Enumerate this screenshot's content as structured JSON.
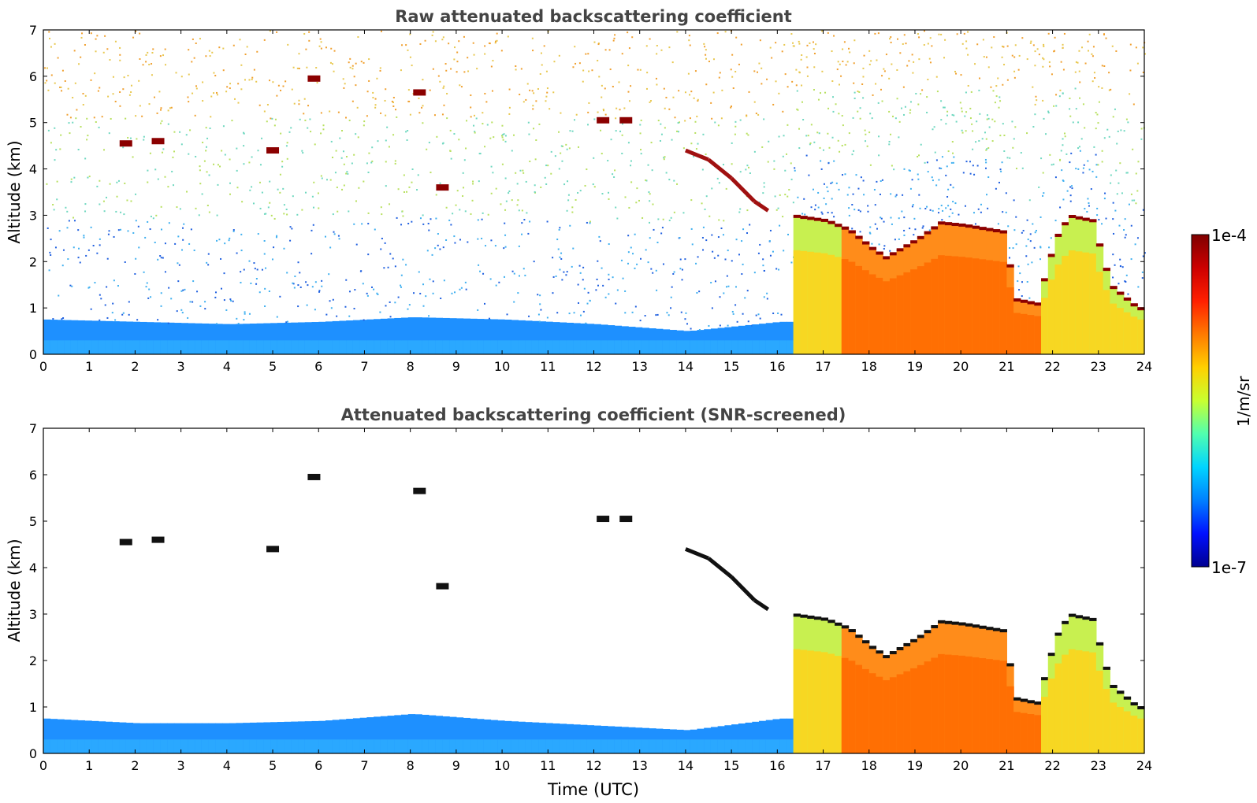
{
  "chart_data": [
    {
      "type": "heatmap",
      "title": "Raw attenuated backscattering coefficient",
      "xlabel": "",
      "ylabel": "Altitude (km)",
      "xlim": [
        0,
        24
      ],
      "ylim": [
        0,
        7
      ],
      "xticks": [
        "0",
        "1",
        "2",
        "3",
        "4",
        "5",
        "6",
        "7",
        "8",
        "9",
        "10",
        "11",
        "12",
        "13",
        "14",
        "15",
        "16",
        "17",
        "18",
        "19",
        "20",
        "21",
        "22",
        "23",
        "24"
      ],
      "yticks": [
        "0",
        "1",
        "2",
        "3",
        "4",
        "5",
        "6",
        "7"
      ],
      "colorscale": "jet, log10",
      "features": {
        "boundary_layer_top_km": [
          [
            0,
            0.75
          ],
          [
            2,
            0.7
          ],
          [
            4,
            0.65
          ],
          [
            6,
            0.7
          ],
          [
            8,
            0.8
          ],
          [
            10,
            0.75
          ],
          [
            12,
            0.65
          ],
          [
            14,
            0.5
          ],
          [
            16,
            0.7
          ]
        ],
        "descending_cloud_layer_km": [
          [
            14.0,
            4.4
          ],
          [
            14.5,
            4.2
          ],
          [
            15.0,
            3.8
          ],
          [
            15.5,
            3.3
          ],
          [
            15.8,
            3.1
          ]
        ],
        "cloud_top_km": [
          [
            16.3,
            3.0
          ],
          [
            17.0,
            2.9
          ],
          [
            17.5,
            2.7
          ],
          [
            18.0,
            2.3
          ],
          [
            18.3,
            2.1
          ],
          [
            19.0,
            2.5
          ],
          [
            19.5,
            2.85
          ],
          [
            20.0,
            2.8
          ],
          [
            20.9,
            2.65
          ],
          [
            21.1,
            1.2
          ],
          [
            21.6,
            1.1
          ],
          [
            22.0,
            2.5
          ],
          [
            22.3,
            3.0
          ],
          [
            22.8,
            2.9
          ],
          [
            23.2,
            1.5
          ],
          [
            23.8,
            1.0
          ]
        ],
        "isolated_clouds_km": [
          [
            1.8,
            4.55
          ],
          [
            2.5,
            4.6
          ],
          [
            5.0,
            4.4
          ],
          [
            5.9,
            5.95
          ],
          [
            8.2,
            5.65
          ],
          [
            8.7,
            3.6
          ],
          [
            12.2,
            5.05
          ],
          [
            12.7,
            5.05
          ]
        ]
      }
    },
    {
      "type": "heatmap",
      "title": "Attenuated backscattering coefficient (SNR-screened)",
      "xlabel": "Time (UTC)",
      "ylabel": "Altitude (km)",
      "xlim": [
        0,
        24
      ],
      "ylim": [
        0,
        7
      ],
      "xticks": [
        "0",
        "1",
        "2",
        "3",
        "4",
        "5",
        "6",
        "7",
        "8",
        "9",
        "10",
        "11",
        "12",
        "13",
        "14",
        "15",
        "16",
        "17",
        "18",
        "19",
        "20",
        "21",
        "22",
        "23",
        "24"
      ],
      "yticks": [
        "0",
        "1",
        "2",
        "3",
        "4",
        "5",
        "6",
        "7"
      ],
      "colorscale": "jet, log10",
      "features": {
        "boundary_layer_top_km": [
          [
            0,
            0.75
          ],
          [
            2,
            0.65
          ],
          [
            4,
            0.65
          ],
          [
            6,
            0.7
          ],
          [
            8,
            0.85
          ],
          [
            10,
            0.7
          ],
          [
            12,
            0.6
          ],
          [
            14,
            0.5
          ],
          [
            16,
            0.75
          ]
        ]
      }
    }
  ],
  "colorbar": {
    "max_label": "1e-4",
    "min_label": "1e-7",
    "unit_label": "1/m/sr",
    "stops": [
      "#7f0000",
      "#cc0000",
      "#ff2000",
      "#ff7a00",
      "#ffd000",
      "#c8ff30",
      "#50ffb0",
      "#00d4ff",
      "#0080ff",
      "#0010ff",
      "#000090"
    ]
  }
}
